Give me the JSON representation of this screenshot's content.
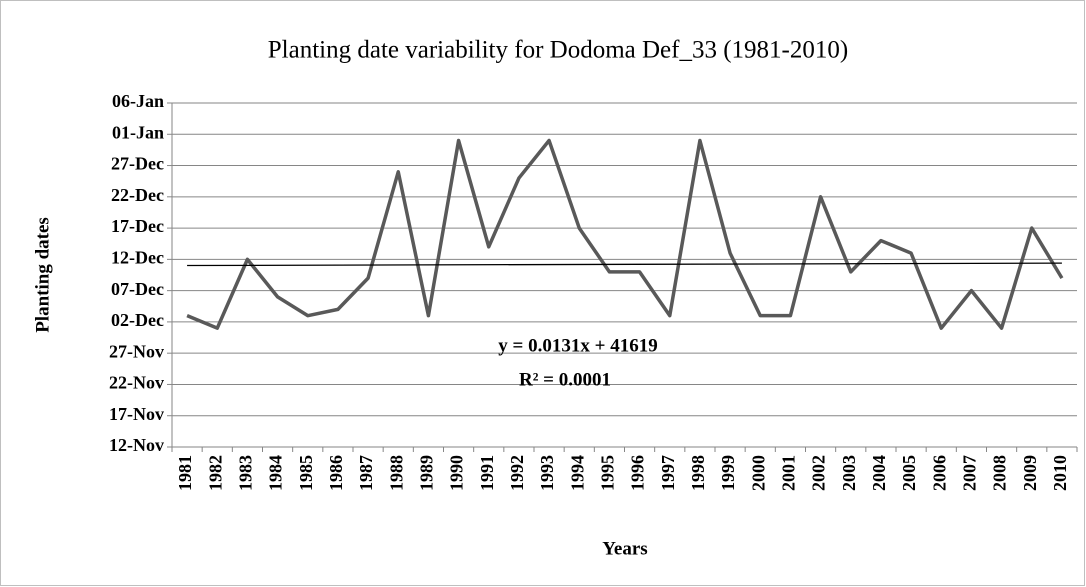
{
  "chart_data": {
    "type": "line",
    "title": "Planting date variability for Dodoma Def_33 (1981-2010)",
    "x_label": "Years",
    "y_label": "Planting dates",
    "categories": [
      "1981",
      "1982",
      "1983",
      "1984",
      "1985",
      "1986",
      "1987",
      "1988",
      "1989",
      "1990",
      "1991",
      "1992",
      "1993",
      "1994",
      "1995",
      "1996",
      "1997",
      "1998",
      "1999",
      "2000",
      "2001",
      "2002",
      "2003",
      "2004",
      "2005",
      "2006",
      "2007",
      "2008",
      "2009",
      "2010"
    ],
    "series": [
      {
        "name": "Planting date",
        "color": "#595959",
        "values": [
          41611,
          41609,
          41620,
          41614,
          41611,
          41612,
          41617,
          41634,
          41611,
          41639,
          41622,
          41633,
          41639,
          41625,
          41618,
          41618,
          41611,
          41639,
          41621,
          41611,
          41611,
          41630,
          41618,
          41623,
          41621,
          41609,
          41615,
          41609,
          41625,
          41617
        ]
      }
    ],
    "ylim": [
      41590,
      41645
    ],
    "yticks": [
      {
        "value": 41590,
        "label": "12-Nov"
      },
      {
        "value": 41595,
        "label": "17-Nov"
      },
      {
        "value": 41600,
        "label": "22-Nov"
      },
      {
        "value": 41605,
        "label": "27-Nov"
      },
      {
        "value": 41610,
        "label": "02-Dec"
      },
      {
        "value": 41615,
        "label": "07-Dec"
      },
      {
        "value": 41620,
        "label": "12-Dec"
      },
      {
        "value": 41625,
        "label": "17-Dec"
      },
      {
        "value": 41630,
        "label": "22-Dec"
      },
      {
        "value": 41635,
        "label": "27-Dec"
      },
      {
        "value": 41640,
        "label": "01-Jan"
      },
      {
        "value": 41645,
        "label": "06-Jan"
      }
    ],
    "grid": true,
    "trendline": {
      "slope": 0.0131,
      "intercept": 41619,
      "color": "#000000",
      "equation_label": "y = 0.0131x + 41619",
      "r2_label": "R² = 0.0001"
    }
  }
}
